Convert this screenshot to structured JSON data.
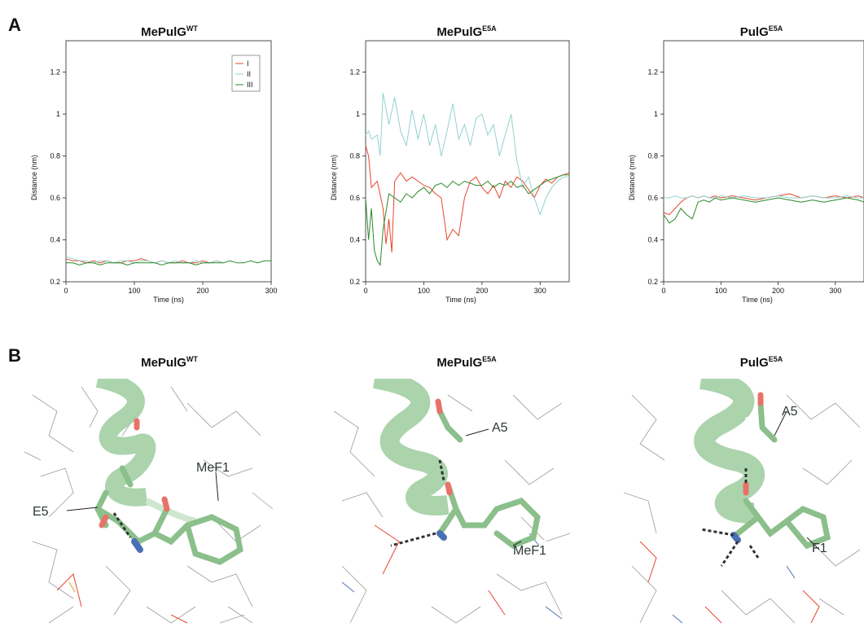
{
  "panels": {
    "a": "A",
    "b": "B"
  },
  "chart_data": [
    {
      "type": "line",
      "title": "MePulG",
      "title_sup": "WT",
      "xlabel": "Time (ns)",
      "ylabel": "Distance (nm)",
      "xlim": [
        0,
        300
      ],
      "ylim": [
        0.2,
        1.35
      ],
      "xticks": [
        0,
        100,
        200,
        300
      ],
      "yticks": [
        0.2,
        0.4,
        0.6,
        0.8,
        1.0,
        1.2
      ],
      "ytick_labels": [
        "0.2",
        "0.4",
        "0.6",
        "0.8",
        "1",
        "1.2"
      ],
      "legend": {
        "position": "top-right",
        "entries": [
          "I",
          "II",
          "III"
        ]
      },
      "series": [
        {
          "name": "I",
          "color": "#e8452c",
          "x": [
            0,
            10,
            20,
            30,
            40,
            50,
            60,
            70,
            80,
            90,
            100,
            110,
            120,
            130,
            140,
            150,
            160,
            170,
            180,
            190,
            200,
            210,
            220,
            230
          ],
          "y": [
            0.31,
            0.3,
            0.3,
            0.29,
            0.3,
            0.29,
            0.3,
            0.29,
            0.29,
            0.3,
            0.3,
            0.31,
            0.3,
            0.29,
            0.3,
            0.29,
            0.29,
            0.3,
            0.29,
            0.29,
            0.3,
            0.29,
            0.3,
            0.29
          ]
        },
        {
          "name": "II",
          "color": "#8fd3cf",
          "x": [
            0,
            10,
            20,
            30,
            40,
            50,
            60,
            70,
            80,
            90,
            100,
            110,
            120,
            130,
            140,
            150,
            160,
            170,
            180,
            190,
            200,
            210,
            220,
            230
          ],
          "y": [
            0.32,
            0.31,
            0.3,
            0.3,
            0.29,
            0.3,
            0.3,
            0.29,
            0.3,
            0.3,
            0.29,
            0.3,
            0.3,
            0.29,
            0.3,
            0.29,
            0.3,
            0.29,
            0.29,
            0.3,
            0.29,
            0.29,
            0.3,
            0.29
          ]
        },
        {
          "name": "III",
          "color": "#2a8a2a",
          "x": [
            0,
            10,
            20,
            30,
            40,
            50,
            60,
            70,
            80,
            90,
            100,
            110,
            120,
            130,
            140,
            150,
            160,
            170,
            180,
            190,
            200,
            210,
            220,
            230,
            240,
            250,
            260,
            270,
            280,
            290,
            300
          ],
          "y": [
            0.29,
            0.29,
            0.28,
            0.29,
            0.29,
            0.28,
            0.29,
            0.29,
            0.29,
            0.28,
            0.29,
            0.29,
            0.29,
            0.29,
            0.28,
            0.29,
            0.29,
            0.29,
            0.29,
            0.28,
            0.29,
            0.29,
            0.29,
            0.29,
            0.3,
            0.29,
            0.29,
            0.3,
            0.29,
            0.3,
            0.3
          ]
        }
      ]
    },
    {
      "type": "line",
      "title": "MePulG",
      "title_sup": "E5A",
      "xlabel": "Time (ns)",
      "ylabel": "Distance (nm)",
      "xlim": [
        0,
        350
      ],
      "ylim": [
        0.2,
        1.35
      ],
      "xticks": [
        0,
        100,
        200,
        300
      ],
      "yticks": [
        0.2,
        0.4,
        0.6,
        0.8,
        1.0,
        1.2
      ],
      "ytick_labels": [
        "0.2",
        "0.4",
        "0.6",
        "0.8",
        "1",
        "1.2"
      ],
      "series": [
        {
          "name": "I",
          "color": "#e8452c",
          "x": [
            0,
            5,
            10,
            20,
            30,
            35,
            40,
            45,
            50,
            60,
            70,
            80,
            90,
            100,
            110,
            120,
            130,
            140,
            150,
            160,
            170,
            180,
            190,
            200,
            210,
            220,
            230,
            240,
            250,
            260,
            270,
            280,
            290,
            300,
            310,
            320,
            330,
            340,
            350
          ],
          "y": [
            0.85,
            0.8,
            0.65,
            0.68,
            0.55,
            0.38,
            0.5,
            0.34,
            0.68,
            0.72,
            0.68,
            0.7,
            0.68,
            0.66,
            0.65,
            0.62,
            0.6,
            0.4,
            0.45,
            0.42,
            0.6,
            0.68,
            0.7,
            0.65,
            0.62,
            0.66,
            0.6,
            0.68,
            0.65,
            0.7,
            0.68,
            0.64,
            0.6,
            0.66,
            0.69,
            0.67,
            0.7,
            0.71,
            0.72
          ]
        },
        {
          "name": "II",
          "color": "#8fd3cf",
          "x": [
            0,
            5,
            10,
            20,
            25,
            30,
            40,
            50,
            60,
            70,
            80,
            90,
            100,
            110,
            120,
            130,
            140,
            150,
            160,
            170,
            180,
            190,
            200,
            210,
            220,
            230,
            240,
            250,
            260,
            270,
            280,
            290,
            300,
            310,
            320,
            330,
            340,
            350
          ],
          "y": [
            0.9,
            0.92,
            0.88,
            0.9,
            0.8,
            1.1,
            0.95,
            1.08,
            0.92,
            0.85,
            1.02,
            0.88,
            1.0,
            0.85,
            0.95,
            0.8,
            0.92,
            1.05,
            0.88,
            0.95,
            0.85,
            0.98,
            1.0,
            0.9,
            0.95,
            0.8,
            0.9,
            1.0,
            0.78,
            0.65,
            0.7,
            0.6,
            0.52,
            0.6,
            0.65,
            0.68,
            0.7,
            0.7
          ]
        },
        {
          "name": "III",
          "color": "#2a8a2a",
          "x": [
            0,
            5,
            10,
            15,
            20,
            25,
            30,
            40,
            50,
            60,
            70,
            80,
            90,
            100,
            110,
            120,
            130,
            140,
            150,
            160,
            170,
            180,
            190,
            200,
            210,
            220,
            230,
            240,
            250,
            260,
            270,
            280,
            290,
            300,
            310,
            320,
            330,
            340,
            350
          ],
          "y": [
            0.6,
            0.4,
            0.55,
            0.35,
            0.3,
            0.28,
            0.45,
            0.62,
            0.6,
            0.58,
            0.62,
            0.6,
            0.63,
            0.65,
            0.62,
            0.66,
            0.67,
            0.65,
            0.68,
            0.66,
            0.68,
            0.67,
            0.66,
            0.66,
            0.68,
            0.65,
            0.67,
            0.66,
            0.68,
            0.65,
            0.66,
            0.62,
            0.64,
            0.66,
            0.68,
            0.69,
            0.7,
            0.71,
            0.71
          ]
        }
      ]
    },
    {
      "type": "line",
      "title": "PulG",
      "title_sup": "E5A",
      "xlabel": "Time (ns)",
      "ylabel": "Distance (nm)",
      "xlim": [
        0,
        350
      ],
      "ylim": [
        0.2,
        1.35
      ],
      "xticks": [
        0,
        100,
        200,
        300
      ],
      "yticks": [
        0.2,
        0.4,
        0.6,
        0.8,
        1.0,
        1.2
      ],
      "ytick_labels": [
        "0.2",
        "0.4",
        "0.6",
        "0.8",
        "1",
        "1.2"
      ],
      "series": [
        {
          "name": "I",
          "color": "#e8452c",
          "x": [
            0,
            10,
            20,
            30,
            40,
            50,
            60,
            70,
            80,
            90,
            100,
            120,
            140,
            160,
            180,
            200,
            220,
            240,
            260,
            280,
            300,
            320,
            340,
            350
          ],
          "y": [
            0.53,
            0.52,
            0.55,
            0.58,
            0.6,
            0.61,
            0.6,
            0.61,
            0.6,
            0.61,
            0.6,
            0.61,
            0.6,
            0.59,
            0.6,
            0.61,
            0.62,
            0.6,
            0.61,
            0.6,
            0.61,
            0.6,
            0.61,
            0.6
          ]
        },
        {
          "name": "II",
          "color": "#8fd3cf",
          "x": [
            0,
            10,
            20,
            30,
            40,
            50,
            60,
            70,
            80,
            90,
            100,
            120,
            140,
            160,
            180,
            200,
            220,
            240,
            260,
            280,
            300,
            320,
            340,
            350
          ],
          "y": [
            0.6,
            0.6,
            0.61,
            0.6,
            0.6,
            0.61,
            0.6,
            0.61,
            0.6,
            0.6,
            0.61,
            0.6,
            0.61,
            0.6,
            0.6,
            0.61,
            0.6,
            0.6,
            0.61,
            0.6,
            0.6,
            0.61,
            0.6,
            0.6
          ]
        },
        {
          "name": "III",
          "color": "#2a8a2a",
          "x": [
            0,
            10,
            20,
            30,
            40,
            50,
            60,
            70,
            80,
            90,
            100,
            120,
            140,
            160,
            180,
            200,
            220,
            240,
            260,
            280,
            300,
            320,
            340,
            350
          ],
          "y": [
            0.52,
            0.48,
            0.5,
            0.55,
            0.52,
            0.5,
            0.58,
            0.59,
            0.58,
            0.6,
            0.59,
            0.6,
            0.59,
            0.58,
            0.59,
            0.6,
            0.59,
            0.58,
            0.59,
            0.58,
            0.59,
            0.6,
            0.59,
            0.58
          ]
        }
      ]
    }
  ],
  "structures": [
    {
      "title": "MePulG",
      "title_sup": "WT",
      "labels": [
        "E5",
        "MeF1"
      ]
    },
    {
      "title": "MePulG",
      "title_sup": "E5A",
      "labels": [
        "A5",
        "MeF1"
      ]
    },
    {
      "title": "PulG",
      "title_sup": "E5A",
      "labels": [
        "A5",
        "F1"
      ]
    }
  ]
}
